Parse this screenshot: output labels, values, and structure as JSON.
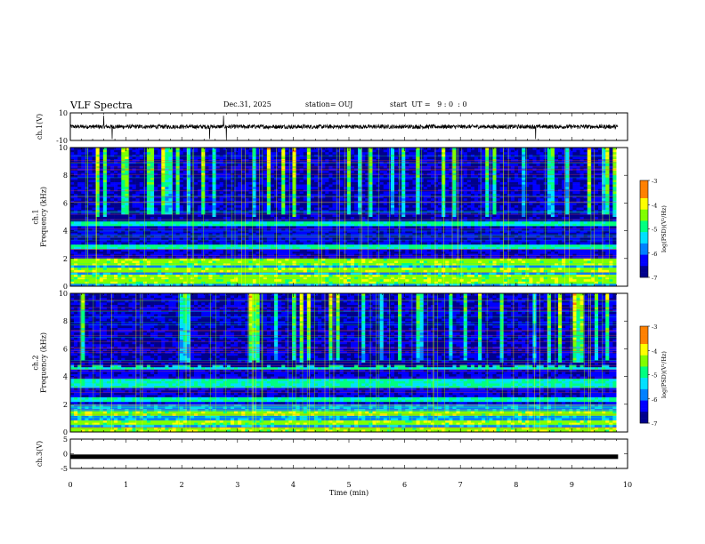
{
  "header": {
    "title": "VLF Spectra",
    "date": "Dec.31, 2025",
    "station": "station= OUJ",
    "start": "start  UT =   9 : 0  : 0"
  },
  "colors": {
    "spectrogram_ramp": [
      "#00008c",
      "#0000ff",
      "#0080ff",
      "#00e0ff",
      "#00ff80",
      "#80ff00",
      "#ffff00",
      "#ff8000",
      "#ff0000",
      "#ffffff"
    ],
    "trace": "#000000",
    "background": "#ffffff"
  },
  "chart_data": [
    {
      "type": "line",
      "name": "ch1-waveform",
      "ylabel": "ch.1(V)",
      "ylim": [
        -10,
        10
      ],
      "yticks": [
        "10",
        "-10"
      ],
      "xlim": [
        0,
        10
      ],
      "baseline": 0,
      "noise_amplitude": 1.5,
      "spikes_at_min": [
        0.6,
        0.75,
        2.5,
        2.75,
        2.8,
        8.35
      ]
    },
    {
      "type": "heatmap",
      "name": "ch1-spectrogram",
      "ylabel": "ch.1\nFrequency (kHz)",
      "ylim": [
        0,
        10
      ],
      "yticks": [
        "0",
        "2",
        "4",
        "6",
        "8",
        "10"
      ],
      "xlim": [
        0,
        9.8
      ],
      "colorbar": {
        "label": "log(PSD)(V²/Hz)",
        "min": -7,
        "max": -3,
        "ticks": [
          "-3",
          "-4",
          "-5",
          "-6",
          "-7"
        ]
      },
      "strong_bands_khz": [
        0.3,
        0.6,
        1.1,
        1.6,
        1.9,
        2.8,
        4.5
      ],
      "sferic_burst_range_khz": [
        5,
        10
      ]
    },
    {
      "type": "heatmap",
      "name": "ch2-spectrogram",
      "ylabel": "ch.2\nFrequency (kHz)",
      "ylim": [
        0,
        10
      ],
      "yticks": [
        "0",
        "2",
        "4",
        "6",
        "8",
        "10"
      ],
      "xlim": [
        0,
        9.8
      ],
      "colorbar": {
        "label": "log(PSD)(V²/Hz)",
        "min": -7,
        "max": -3,
        "ticks": [
          "-3",
          "-4",
          "-5",
          "-6",
          "-7"
        ]
      },
      "strong_bands_khz": [
        0.2,
        0.6,
        1.3,
        2.3,
        3.3,
        3.6,
        4.6
      ],
      "sferic_burst_range_khz": [
        5,
        10
      ]
    },
    {
      "type": "line",
      "name": "ch3-waveform",
      "ylabel": "ch.3(V)",
      "ylim": [
        -5,
        5
      ],
      "yticks": [
        "5",
        "0",
        "-5"
      ],
      "xlim": [
        0,
        10
      ],
      "baseline": -1,
      "noise_amplitude": 0.3
    }
  ],
  "xaxis": {
    "label": "Time (min)",
    "ticks": [
      "0",
      "1",
      "2",
      "3",
      "4",
      "5",
      "6",
      "7",
      "8",
      "9",
      "10"
    ],
    "range": [
      0,
      10
    ]
  }
}
